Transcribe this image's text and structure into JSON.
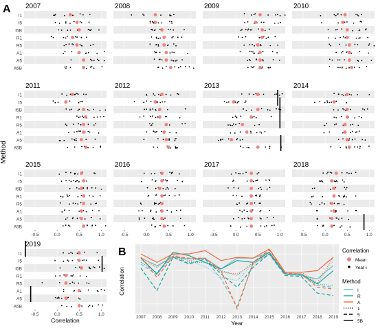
{
  "figure": {
    "panel_a_label": "A",
    "panel_b_label": "B",
    "ylabel_a": "Method",
    "xlabel_a": "Correlation"
  },
  "chart_data": [
    {
      "type": "scatter",
      "panel": "A",
      "years": [
        "2007",
        "2008",
        "2009",
        "2010",
        "2011",
        "2012",
        "2013",
        "2014",
        "2015",
        "2016",
        "2017",
        "2018",
        "2019"
      ],
      "methods": [
        "I1",
        "I5",
        "I5B",
        "R1",
        "R5",
        "A1",
        "A5",
        "A5B"
      ],
      "xlim": [
        -0.75,
        1.12
      ],
      "xticks": [
        {
          "value": -0.5,
          "label": "-0.5"
        },
        {
          "value": 0,
          "label": "0.0"
        },
        {
          "value": 0.5,
          "label": "0.5"
        },
        {
          "value": 1,
          "label": "1.0"
        }
      ],
      "xlabel": "Correlation",
      "ylabel": "Method",
      "legend_title": "Correlation",
      "legend": [
        {
          "label": "Mean",
          "color": "#f08080"
        },
        {
          "label": "Year-i",
          "color": "#000000"
        }
      ],
      "means": [
        [
          0.3,
          0.45,
          0.5,
          0.35,
          0.45,
          0.5,
          0.6,
          0.6
        ],
        [
          0.2,
          0.2,
          0.35,
          0.4,
          0.4,
          0.45,
          0.45,
          0.55
        ],
        [
          0.55,
          0.45,
          0.6,
          0.6,
          0.5,
          0.55,
          0.55,
          0.55
        ],
        [
          0.45,
          0.4,
          0.5,
          0.5,
          0.55,
          0.55,
          0.55,
          0.6
        ],
        [
          0.35,
          0.2,
          0.6,
          0.65,
          0.6,
          0.6,
          0.55,
          0.65
        ],
        [
          0.35,
          0.2,
          0.3,
          0.3,
          0.45,
          0.4,
          0.45,
          0.5
        ],
        [
          0.5,
          -0.05,
          0.5,
          0.35,
          0.15,
          0.25,
          -0.1,
          0.5
        ],
        [
          0.5,
          0.2,
          0.5,
          0.5,
          0.45,
          0.45,
          0.5,
          0.55
        ],
        [
          0.55,
          0.6,
          0.55,
          0.6,
          0.6,
          0.55,
          0.55,
          0.6
        ],
        [
          0.35,
          0.35,
          0.3,
          0.35,
          0.35,
          0.35,
          0.35,
          0.4
        ],
        [
          0.35,
          0.35,
          0.35,
          0.35,
          0.35,
          0.35,
          0.35,
          0.35
        ],
        [
          0.25,
          0.15,
          0.2,
          0.2,
          0.15,
          0.2,
          0.15,
          0.15
        ],
        [
          0.5,
          0.5,
          0.55,
          0.2,
          0.2,
          0.5,
          0.2,
          0.5
        ]
      ],
      "bars": [
        {
          "year": "2013",
          "method": "I5",
          "from": 0.95,
          "to": 1.0
        },
        {
          "year": "2013",
          "method": "I5B",
          "from": 1.0,
          "to": 1.02
        },
        {
          "year": "2013",
          "method": "R5",
          "from": 1.0,
          "to": 1.02
        },
        {
          "year": "2013",
          "method": "A5B",
          "from": 1.02,
          "to": 1.04
        },
        {
          "year": "2018",
          "method": "A5B",
          "from": 0.88,
          "to": 0.9
        },
        {
          "year": "2019",
          "method": "I1",
          "from": -0.72,
          "to": -0.6
        },
        {
          "year": "2019",
          "method": "I5B",
          "from": 1.02,
          "to": 1.06
        },
        {
          "year": "2019",
          "method": "A5",
          "from": -0.6,
          "to": -0.5
        }
      ]
    },
    {
      "type": "line",
      "panel": "B",
      "categories": [
        "2007",
        "2008",
        "2009",
        "2010",
        "2011",
        "2012",
        "2013",
        "2014",
        "2015",
        "2016",
        "2017",
        "2018",
        "2019"
      ],
      "ylabel": "Correlation",
      "xlabel": "Year",
      "ylim": [
        -0.1,
        0.7
      ],
      "legend_title": "Method",
      "legend": [
        {
          "label": "I",
          "kind": "color",
          "color": "#66c2c8"
        },
        {
          "label": "R",
          "kind": "color",
          "color": "#1aa3a3"
        },
        {
          "label": "A",
          "kind": "color",
          "color": "#f26a3c"
        },
        {
          "label": "1",
          "kind": "dash",
          "dash": "1,2"
        },
        {
          "label": "5",
          "kind": "dash",
          "dash": "5,3"
        },
        {
          "label": "5B",
          "kind": "dash",
          "dash": ""
        }
      ],
      "series": [
        {
          "method": "I",
          "type": "1",
          "color": "#66c2c8",
          "dash": "1,2",
          "values": [
            0.52,
            0.44,
            0.6,
            0.52,
            0.45,
            0.32,
            0.28,
            0.48,
            0.6,
            0.36,
            0.36,
            0.24,
            0.52
          ]
        },
        {
          "method": "I",
          "type": "5",
          "color": "#66c2c8",
          "dash": "5,3",
          "values": [
            0.48,
            0.35,
            0.6,
            0.48,
            0.54,
            0.3,
            -0.03,
            0.48,
            0.6,
            0.35,
            0.35,
            0.22,
            0.2
          ]
        },
        {
          "method": "I",
          "type": "5B",
          "color": "#66c2c8",
          "dash": "",
          "values": [
            0.55,
            0.46,
            0.56,
            0.54,
            0.55,
            0.42,
            0.55,
            0.55,
            0.62,
            0.36,
            0.34,
            0.3,
            0.46
          ]
        },
        {
          "method": "R",
          "type": "1",
          "color": "#1aa3a3",
          "dash": "1,2",
          "values": [
            0.5,
            0.38,
            0.56,
            0.5,
            0.5,
            0.4,
            0.34,
            0.5,
            0.6,
            0.36,
            0.35,
            0.24,
            0.22
          ]
        },
        {
          "method": "R",
          "type": "5",
          "color": "#1aa3a3",
          "dash": "5,3",
          "values": [
            0.43,
            0.16,
            0.56,
            0.48,
            0.54,
            0.36,
            0.2,
            0.44,
            0.6,
            0.34,
            0.33,
            0.13,
            0.1
          ]
        },
        {
          "method": "R",
          "type": "5B",
          "color": "#1aa3a3",
          "dash": "",
          "values": [
            0.55,
            0.36,
            0.62,
            0.58,
            0.5,
            0.42,
            0.52,
            0.5,
            0.62,
            0.36,
            0.36,
            0.24,
            0.4
          ]
        },
        {
          "method": "A",
          "type": "1",
          "color": "#f26a3c",
          "dash": "1,2",
          "values": [
            0.56,
            0.44,
            0.58,
            0.52,
            0.55,
            0.38,
            0.36,
            0.48,
            0.62,
            0.38,
            0.38,
            0.26,
            0.56
          ]
        },
        {
          "method": "A",
          "type": "5",
          "color": "#f26a3c",
          "dash": "5,3",
          "values": [
            0.56,
            0.32,
            0.57,
            0.55,
            0.55,
            0.4,
            -0.06,
            0.5,
            0.65,
            0.37,
            0.36,
            0.2,
            0.18
          ]
        },
        {
          "method": "A",
          "type": "5B",
          "color": "#f26a3c",
          "dash": "",
          "values": [
            0.6,
            0.5,
            0.6,
            0.6,
            0.64,
            0.52,
            0.56,
            0.55,
            0.66,
            0.38,
            0.38,
            0.4,
            0.56
          ]
        }
      ]
    }
  ]
}
